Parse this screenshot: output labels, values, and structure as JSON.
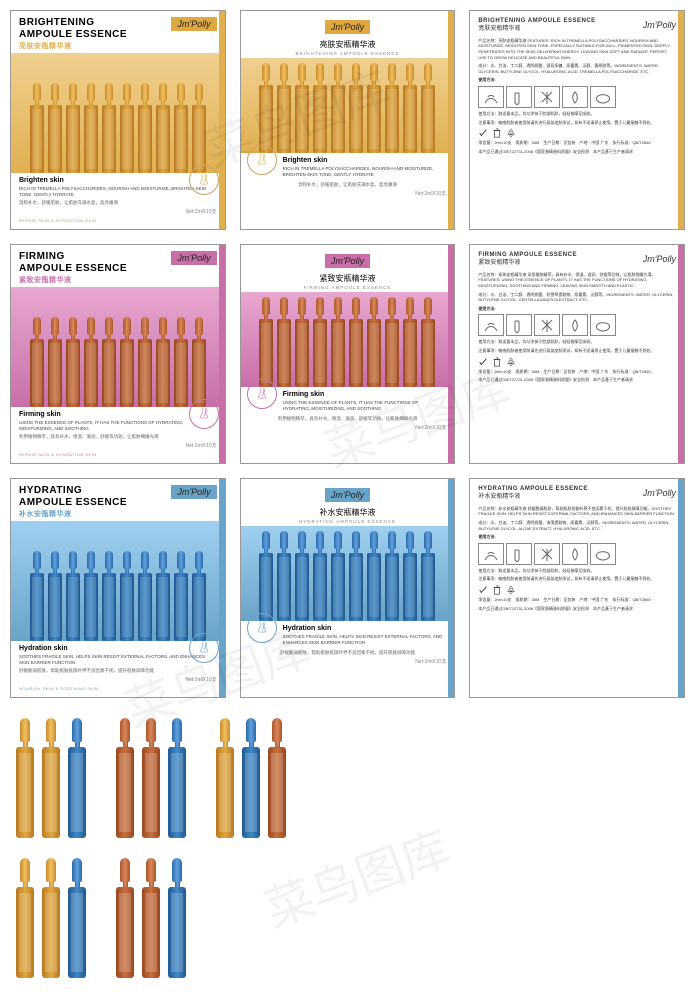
{
  "brand": "Jm'Polly",
  "watermark": "菜鸟图库",
  "net": "Net:2mlX10支",
  "products": [
    {
      "key": "brighten",
      "title_en_1": "BRIGHTENING",
      "title_en_2": "AMPOULE ESSENCE",
      "title_cn": "亮肤安瓶精华液",
      "claim": "Brighten skin",
      "desc_en": "RICH IN TREMELLA POLYSACCHARIDES, NOURISH AND MOISTURIZE, BRIGHTEN SKIN TONE, GENTLY HYDRATE",
      "desc_cn": "温和补水，舒缓肌肤，让肌肤充满水盈，盈亮嫩滑",
      "tag": "REPAIR SKIN & HYDRATION SKIN",
      "accent": "#e0b050",
      "accent_class": "gold",
      "bg_class": "gold-bg",
      "amp_class": "gold",
      "brand_class": "",
      "tag_class": "",
      "back": {
        "intro": "产品名称：亮肤安瓶精华液  FEATURES: RICH IN TREMELLA POLYSACCHARIDES, NOURISH AND MOISTURIZE, BRIGHTEN SKIN TONE, ESPECIALLY SUITABLE FOR DULL, PIGMENTED SKIN, DEEPLY PENETRATES INTO THE SKIN, DELIVERING ENERGY. LEAVING SKIN SOFT AND RADIANT, PERSIST USE TO GROW DELICATE AND BEAUTIFUL SKIN.",
        "ing": "成分：水、甘油、丁二醇、透明质酸、银耳多糖、尿囊素、泛醇、黄原胶等。INGREDIENTS: WATER, GLYCERIN, BUTYLENE GLYCOL, HYALURONIC ACID, TREMELLA POLYSACCHARIDE, ETC.",
        "usage": "使用方法：取适量本品，均匀涂抹于脸部肌肤，轻轻按摩至吸收。",
        "caution": "注意事项：敏感肌肤者使用前请先进行局部皮肤测试，如有不适请停止使用。置于儿童接触不到处。",
        "info": "净含量：2ml×10支　保质期：36M　生产日期：见包装　产地：中国 广东　执行标准：QB/T2660",
        "cert": "本产品已通过GB/T22731-2008《国家香精香料质量》安全检测　本产品基于生产者请求"
      }
    },
    {
      "key": "firming",
      "title_en_1": "FIRMING",
      "title_en_2": "AMPOULE ESSENCE",
      "title_cn": "紧致安瓶精华液",
      "claim": "Firming skin",
      "desc_en": "USING THE ESSENCE OF PLANTS, IT HAS THE FUNCTIONS OF HYDRATING, MOISTURIZING, AND SOOTHING",
      "desc_cn": "利用植物精萃，具有补水、保湿、滋润、舒缓等功效，让肌肤细嫩光滑",
      "tag": "REPAIR SKIN & HYDRATION SKIN",
      "accent": "#c86fa8",
      "accent_class": "pink",
      "bg_class": "pink-bg",
      "amp_class": "copper",
      "brand_class": "pink",
      "tag_class": "pink",
      "back": {
        "intro": "产品名称：紧致安瓶精华液  采用植物精萃，具有补水、保湿、滋润、舒缓等功效，让肌肤细嫩光滑。FEATURES: USING THE ESSENCE OF PLANTS, IT HAS THE FUNCTIONS OF HYDRATING, MOISTURIZING, SOOTHING AND FIRMING, LEAVING SKIN SMOOTH AND ELASTIC.",
        "ing": "成分：水、甘油、丁二醇、透明质酸、积雪草提取物、尿囊素、泛醇等。INGREDIENTS: WATER, GLYCERIN, BUTYLENE GLYCOL, CENTELLA ASIATICA EXTRACT, ETC.",
        "usage": "使用方法：取适量本品，均匀涂抹于脸部肌肤，轻轻按摩至吸收。",
        "caution": "注意事项：敏感肌肤者使用前请先进行局部皮肤测试，如有不适请停止使用。置于儿童接触不到处。",
        "info": "净含量：2ml×10支　保质期：36M　生产日期：见包装　产地：中国 广东　执行标准：QB/T2660",
        "cert": "本产品已通过GB/T22731-2008《国家香精香料质量》安全检测　本产品基于生产者请求"
      }
    },
    {
      "key": "hydrating",
      "title_en_1": "HYDRATING",
      "title_en_2": "AMPOULE ESSENCE",
      "title_cn": "补水安瓶精华液",
      "claim": "Hydration skin",
      "desc_en": "SOOTHES FRAGILE SKIN, HELPS SKIN RESIST EXTERNAL FACTORS, AND ENHANCES SKIN BARRIER FUNCTION",
      "desc_cn": "舒缓脆弱肌肤，帮助肌肤抵御外界不良因素干扰，提升肌肤屏障功能",
      "tag": "NOURISH SKIN & SOOTHING SKIN",
      "accent": "#6aa3c8",
      "accent_class": "blue",
      "bg_class": "blue-bg",
      "amp_class": "blu",
      "brand_class": "blue",
      "tag_class": "blue",
      "back": {
        "intro": "产品名称：补水安瓶精华液  舒缓脆弱肌肤，帮助肌肤抵御外界不良因素干扰，提升肌肤屏障功能。SOOTHES FRAGILE SKIN, HELPS SKIN RESIST EXTERNAL FACTORS, AND ENHANCES SKIN BARRIER FUNCTION.",
        "ing": "成分：水、甘油、丁二醇、透明质酸、海藻提取物、尿囊素、泛醇等。INGREDIENTS: WATER, GLYCERIN, BUTYLENE GLYCOL, ALGAE EXTRACT, HYALURONIC ACID, ETC.",
        "usage": "使用方法：取适量本品，均匀涂抹于脸部肌肤，轻轻按摩至吸收。",
        "caution": "注意事项：敏感肌肤者使用前请先进行局部皮肤测试，如有不适请停止使用。置于儿童接触不到处。",
        "info": "净含量：2ml×10支　保质期：36M　生产日期：见包装　产地：中国 广东　执行标准：QB/T2660",
        "cert": "本产品已通过GB/T22731-2008《国家香精香料质量》安全检测　本产品基于生产者请求"
      }
    }
  ],
  "loose_rows": [
    [
      [
        "gold",
        "gold",
        "blu"
      ],
      [
        "copper",
        "copper",
        "blu"
      ],
      [
        "gold",
        "blu",
        "copper"
      ]
    ],
    [
      [
        "gold",
        "gold",
        "blu"
      ],
      [
        "copper",
        "copper",
        "blu"
      ]
    ]
  ],
  "seal_label": "CARE SKIN"
}
